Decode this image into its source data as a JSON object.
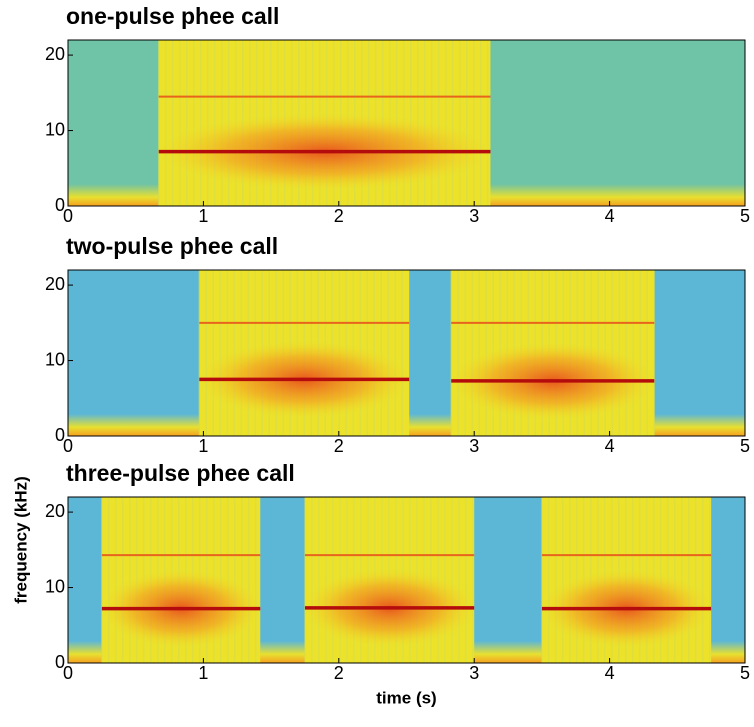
{
  "chart_data": [
    {
      "type": "spectrogram",
      "title": "one-pulse phee call",
      "background": "#6fc3a6",
      "xlim": [
        0,
        5
      ],
      "ylim": [
        0,
        22
      ],
      "xticks": [
        0,
        1,
        2,
        3,
        4,
        5
      ],
      "yticks": [
        0,
        10,
        20
      ],
      "calls": [
        {
          "start": 0.67,
          "end": 3.12,
          "fundamental": 7.2,
          "harmonic": 14.5
        }
      ]
    },
    {
      "type": "spectrogram",
      "title": "two-pulse phee call",
      "background": "#5cb7d6",
      "xlim": [
        0,
        5
      ],
      "ylim": [
        0,
        22
      ],
      "xticks": [
        0,
        1,
        2,
        3,
        4,
        5
      ],
      "yticks": [
        0,
        10,
        20
      ],
      "calls": [
        {
          "start": 0.97,
          "end": 2.52,
          "fundamental": 7.5,
          "harmonic": 15
        },
        {
          "start": 2.83,
          "end": 4.33,
          "fundamental": 7.3,
          "harmonic": 15
        }
      ]
    },
    {
      "type": "spectrogram",
      "title": "three-pulse phee call",
      "background": "#5cb7d6",
      "xlim": [
        0,
        5
      ],
      "ylim": [
        0,
        22
      ],
      "xticks": [
        0,
        1,
        2,
        3,
        4,
        5
      ],
      "yticks": [
        0,
        10,
        20
      ],
      "xlabel": "time (s)",
      "ylabel": "frequency (kHz)",
      "calls": [
        {
          "start": 0.25,
          "end": 1.42,
          "fundamental": 7.2,
          "harmonic": 14.3
        },
        {
          "start": 1.75,
          "end": 3.0,
          "fundamental": 7.3,
          "harmonic": 14.3
        },
        {
          "start": 3.5,
          "end": 4.75,
          "fundamental": 7.2,
          "harmonic": 14.3
        }
      ]
    }
  ]
}
